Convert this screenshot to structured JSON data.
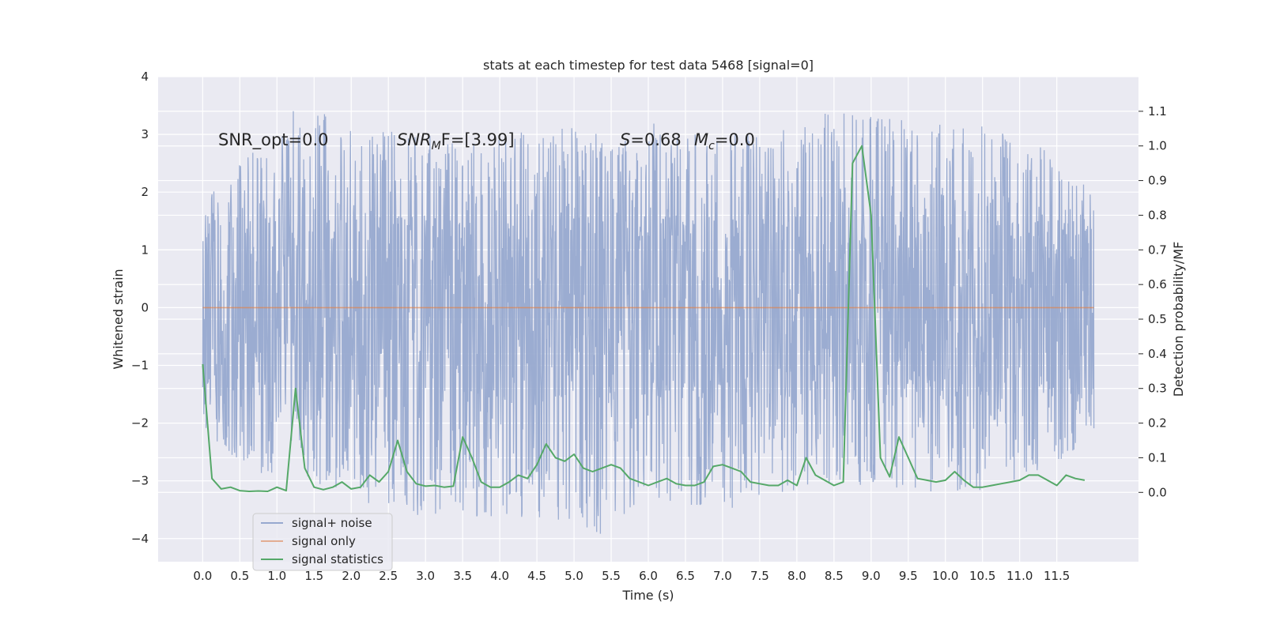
{
  "chart_data": {
    "type": "line",
    "title": "stats at each timestep for test data 5468 [signal=0]",
    "xlabel": "Time (s)",
    "ylabel": "Whitened strain",
    "y2label": "Detection probability/MF",
    "xlim": [
      -0.6,
      12.6
    ],
    "ylim": [
      -4.4,
      4.0
    ],
    "y2lim": [
      -0.2,
      1.2
    ],
    "x_ticks": [
      0.0,
      0.5,
      1.0,
      1.5,
      2.0,
      2.5,
      3.0,
      3.5,
      4.0,
      4.5,
      5.0,
      5.5,
      6.0,
      6.5,
      7.0,
      7.5,
      8.0,
      8.5,
      9.0,
      9.5,
      10.0,
      10.5,
      11.0,
      11.5
    ],
    "x_tick_labels": [
      "0.0",
      "0.5",
      "1.0",
      "1.5",
      "2.0",
      "2.5",
      "3.0",
      "3.5",
      "4.0",
      "4.5",
      "5.0",
      "5.5",
      "6.0",
      "6.5",
      "7.0",
      "7.5",
      "8.0",
      "8.5",
      "9.0",
      "9.5",
      "10.0",
      "10.5",
      "11.0",
      "11.5"
    ],
    "y_ticks": [
      4,
      3,
      2,
      1,
      0,
      -1,
      -2,
      -3,
      -4
    ],
    "y_tick_labels": [
      "4",
      "3",
      "2",
      "1",
      "0",
      "−1",
      "−2",
      "−3",
      "−4"
    ],
    "y2_ticks": [
      1.1,
      1.0,
      0.9,
      0.8,
      0.7,
      0.6,
      0.5,
      0.4,
      0.3,
      0.2,
      0.1,
      0.0
    ],
    "y2_tick_labels": [
      "1.1",
      "1.0",
      "0.9",
      "0.8",
      "0.7",
      "0.6",
      "0.5",
      "0.4",
      "0.3",
      "0.2",
      "0.1",
      "0.0"
    ],
    "grid": true,
    "legend_position": "lower-left",
    "annotations": {
      "snr_opt": "SNR_opt=0.0",
      "snr_mf_prefix": "SNR",
      "snr_mf_sub": "M",
      "snr_mf_suffix": "F=[3.99]",
      "s_prefix": "S",
      "s_value": "=0.68",
      "mc_prefix": "M",
      "mc_sub": "c",
      "mc_value": "=0.0"
    },
    "series": [
      {
        "name": "signal+ noise",
        "color": "#97a9cf",
        "axis": "left",
        "x_range": [
          0.0,
          12.0
        ],
        "envelope": {
          "x": [
            0.0,
            0.05,
            1.0,
            1.3,
            2.0,
            3.6,
            4.0,
            5.0,
            5.2,
            6.0,
            7.5,
            8.5,
            9.0,
            11.0,
            12.0
          ],
          "upper": [
            2.1,
            2.0,
            3.2,
            3.5,
            3.2,
            2.9,
            3.0,
            3.2,
            3.0,
            3.2,
            3.0,
            3.5,
            3.3,
            3.1,
            2.0
          ],
          "lower": [
            -2.0,
            -2.2,
            -3.2,
            -3.0,
            -3.3,
            -3.9,
            -3.6,
            -3.7,
            -4.1,
            -3.3,
            -3.6,
            -3.0,
            -3.2,
            -3.2,
            -2.2
          ]
        }
      },
      {
        "name": "signal only",
        "color": "#dd8452",
        "axis": "left",
        "x": [
          0.0,
          12.0
        ],
        "values": [
          0.0,
          0.0
        ]
      },
      {
        "name": "signal statistics",
        "color": "#55a868",
        "axis": "right",
        "x": [
          0.0,
          0.125,
          0.25,
          0.375,
          0.5,
          0.625,
          0.75,
          0.875,
          1.0,
          1.125,
          1.25,
          1.375,
          1.5,
          1.625,
          1.75,
          1.875,
          2.0,
          2.125,
          2.25,
          2.375,
          2.5,
          2.625,
          2.75,
          2.875,
          3.0,
          3.125,
          3.25,
          3.375,
          3.5,
          3.625,
          3.75,
          3.875,
          4.0,
          4.125,
          4.25,
          4.375,
          4.5,
          4.625,
          4.75,
          4.875,
          5.0,
          5.125,
          5.25,
          5.375,
          5.5,
          5.625,
          5.75,
          5.875,
          6.0,
          6.125,
          6.25,
          6.375,
          6.5,
          6.625,
          6.75,
          6.875,
          7.0,
          7.125,
          7.25,
          7.375,
          7.5,
          7.625,
          7.75,
          7.875,
          8.0,
          8.125,
          8.25,
          8.375,
          8.5,
          8.625,
          8.75,
          8.875,
          9.0,
          9.125,
          9.25,
          9.375,
          9.5,
          9.625,
          9.75,
          9.875,
          10.0,
          10.125,
          10.25,
          10.375,
          10.5,
          10.625,
          10.75,
          10.875,
          11.0,
          11.125,
          11.25,
          11.375,
          11.5,
          11.625,
          11.75,
          11.875
        ],
        "values": [
          0.37,
          0.04,
          0.01,
          0.015,
          0.005,
          0.003,
          0.004,
          0.003,
          0.015,
          0.005,
          0.3,
          0.07,
          0.015,
          0.008,
          0.015,
          0.03,
          0.01,
          0.015,
          0.05,
          0.03,
          0.06,
          0.15,
          0.06,
          0.025,
          0.018,
          0.02,
          0.015,
          0.018,
          0.16,
          0.1,
          0.03,
          0.015,
          0.015,
          0.03,
          0.05,
          0.04,
          0.08,
          0.14,
          0.1,
          0.09,
          0.11,
          0.07,
          0.06,
          0.07,
          0.08,
          0.07,
          0.04,
          0.03,
          0.02,
          0.03,
          0.04,
          0.025,
          0.02,
          0.02,
          0.03,
          0.075,
          0.08,
          0.07,
          0.06,
          0.03,
          0.025,
          0.02,
          0.02,
          0.035,
          0.02,
          0.1,
          0.05,
          0.035,
          0.02,
          0.03,
          0.95,
          1.0,
          0.8,
          0.1,
          0.045,
          0.16,
          0.1,
          0.04,
          0.035,
          0.03,
          0.035,
          0.06,
          0.035,
          0.015,
          0.015,
          0.02,
          0.025,
          0.03,
          0.035,
          0.05,
          0.05,
          0.035,
          0.02,
          0.05,
          0.04,
          0.035
        ]
      }
    ]
  }
}
